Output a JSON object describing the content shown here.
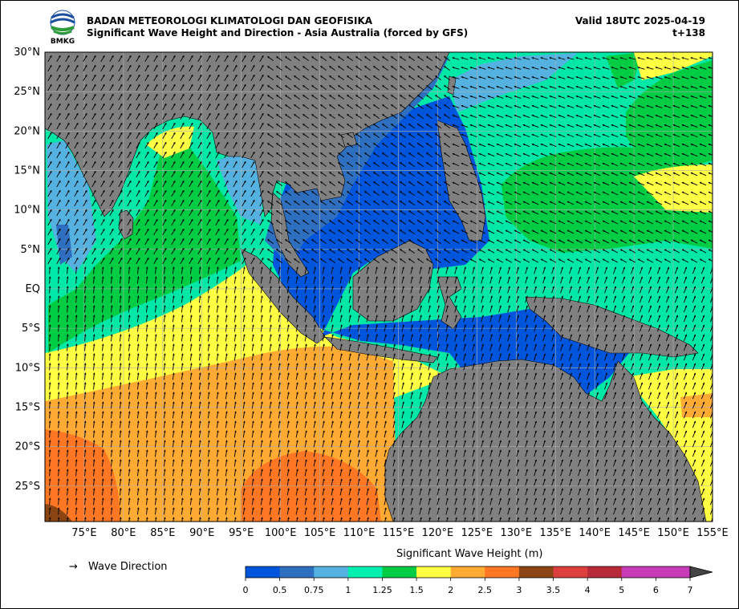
{
  "header": {
    "agency": "BADAN METEOROLOGI KLIMATOLOGI DAN GEOFISIKA",
    "product": "Significant Wave Height and Direction - Asia Australia (forced by GFS)",
    "valid": "Valid 18UTC 2025-04-19",
    "lead": "t+138",
    "logo_text": "BMKG"
  },
  "map": {
    "lon_range": [
      70,
      155
    ],
    "lat_range": [
      -29.5,
      30
    ],
    "lat_ticks": [
      {
        "v": 30,
        "label": "30°N"
      },
      {
        "v": 25,
        "label": "25°N"
      },
      {
        "v": 20,
        "label": "20°N"
      },
      {
        "v": 15,
        "label": "15°N"
      },
      {
        "v": 10,
        "label": "10°N"
      },
      {
        "v": 5,
        "label": "5°N"
      },
      {
        "v": 0,
        "label": "EQ"
      },
      {
        "v": -5,
        "label": "5°S"
      },
      {
        "v": -10,
        "label": "10°S"
      },
      {
        "v": -15,
        "label": "15°S"
      },
      {
        "v": -20,
        "label": "20°S"
      },
      {
        "v": -25,
        "label": "25°S"
      }
    ],
    "lon_ticks": [
      {
        "v": 75,
        "label": "75°E"
      },
      {
        "v": 80,
        "label": "80°E"
      },
      {
        "v": 85,
        "label": "85°E"
      },
      {
        "v": 90,
        "label": "90°E"
      },
      {
        "v": 95,
        "label": "95°E"
      },
      {
        "v": 100,
        "label": "100°E"
      },
      {
        "v": 105,
        "label": "105°E"
      },
      {
        "v": 110,
        "label": "110°E"
      },
      {
        "v": 115,
        "label": "115°E"
      },
      {
        "v": 120,
        "label": "120°E"
      },
      {
        "v": 125,
        "label": "125°E"
      },
      {
        "v": 130,
        "label": "130°E"
      },
      {
        "v": 135,
        "label": "135°E"
      },
      {
        "v": 140,
        "label": "140°E"
      },
      {
        "v": 145,
        "label": "145°E"
      },
      {
        "v": 150,
        "label": "150°E"
      },
      {
        "v": 155,
        "label": "155°E"
      }
    ],
    "colors": {
      "land": "#808080",
      "grid": "#b0b0b0",
      "coast": "#000000"
    }
  },
  "legend": {
    "arrow_symbol": "→",
    "direction_label": "Wave Direction",
    "colorbar_title": "Significant Wave Height (m)",
    "bins": [
      {
        "from": "0",
        "color": "#0055dd"
      },
      {
        "from": "0.5",
        "color": "#2f6fbf"
      },
      {
        "from": "0.75",
        "color": "#55b2e0"
      },
      {
        "from": "1",
        "color": "#00f0b0"
      },
      {
        "from": "1.25",
        "color": "#00cc44"
      },
      {
        "from": "1.5",
        "color": "#ffff44"
      },
      {
        "from": "2",
        "color": "#ffaa33"
      },
      {
        "from": "2.5",
        "color": "#ff7722"
      },
      {
        "from": "3",
        "color": "#8b4513"
      },
      {
        "from": "3.5",
        "color": "#dd3f3f"
      },
      {
        "from": "4",
        "color": "#b82a3a"
      },
      {
        "from": "5",
        "color": "#c83cb8"
      },
      {
        "from": "6",
        "color": "#c83cb8"
      }
    ],
    "last_tick": "7",
    "extend_color": "#444444"
  }
}
